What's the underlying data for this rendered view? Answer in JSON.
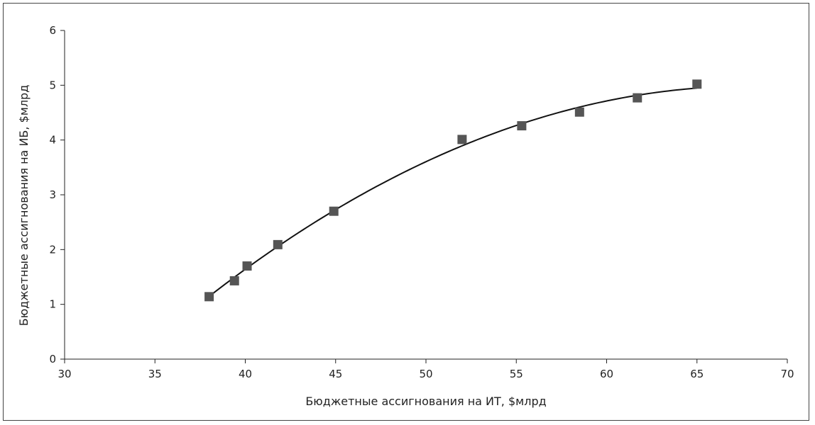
{
  "chart_data": {
    "type": "scatter",
    "title": "",
    "xlabel": "Бюджетные ассигнования на ИТ, $млрд",
    "ylabel": "Бюджетные ассигнования на ИБ, $млрд",
    "xlim": [
      30,
      70
    ],
    "ylim": [
      0,
      6
    ],
    "x_ticks": [
      "30",
      "35",
      "40",
      "45",
      "50",
      "55",
      "60",
      "65",
      "70"
    ],
    "y_ticks": [
      "0",
      "1",
      "2",
      "3",
      "4",
      "5",
      "6"
    ],
    "grid": false,
    "legend": "none",
    "marker_color": "#555555",
    "line_color": "#111111",
    "series": [
      {
        "points": [
          {
            "x": 38.0,
            "y": 1.14
          },
          {
            "x": 39.4,
            "y": 1.43
          },
          {
            "x": 40.1,
            "y": 1.7
          },
          {
            "x": 41.8,
            "y": 2.09
          },
          {
            "x": 44.9,
            "y": 2.7
          },
          {
            "x": 52.0,
            "y": 4.01
          },
          {
            "x": 55.3,
            "y": 4.26
          },
          {
            "x": 58.5,
            "y": 4.51
          },
          {
            "x": 61.7,
            "y": 4.77
          },
          {
            "x": 65.0,
            "y": 5.02
          }
        ]
      }
    ],
    "trendline": {
      "type": "polynomial",
      "x_range": [
        38,
        65
      ],
      "points": [
        {
          "x": 38,
          "y": 1.16
        },
        {
          "x": 45,
          "y": 2.72
        },
        {
          "x": 55,
          "y": 4.27
        },
        {
          "x": 65,
          "y": 4.96
        }
      ]
    }
  }
}
